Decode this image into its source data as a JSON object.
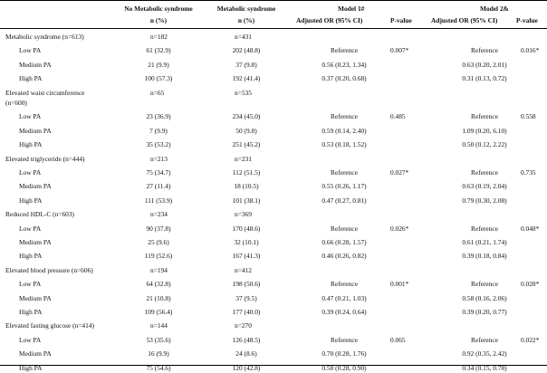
{
  "header": {
    "col1_line1": "No Metabolic syndrome",
    "col1_line2": "n (%)",
    "col2_line1": "Metabolic syndrome",
    "col2_line2": "n (%)",
    "model1": "Model 1#",
    "model1_or": "Adjusted OR (95% CI)",
    "model1_p": "P-value",
    "model2": "Model 2&",
    "model2_or": "Adjusted OR (95% CI)",
    "model2_p": "P-value"
  },
  "sections": [
    {
      "title": "Metabolic syndrome (n=613)",
      "title2": "",
      "n_no": "n=182",
      "n_yes": "n=431",
      "p1": "0.007*",
      "p2": "0.016*",
      "rows": [
        {
          "label": "Low PA",
          "no": "61 (32.9)",
          "yes": "202 (48.8)",
          "or1": "Reference",
          "or2": "Reference"
        },
        {
          "label": "Medium PA",
          "no": "21 (9.9)",
          "yes": "37 (9.8)",
          "or1": "0.56 (0.23, 1.34)",
          "or2": "0.63 (0.20, 2.01)"
        },
        {
          "label": "High PA",
          "no": "100 (57.3)",
          "yes": "192 (41.4)",
          "or1": "0.37 (0.20, 0.68)",
          "or2": "0.31 (0.13, 0.72)"
        }
      ]
    },
    {
      "title": "Elevated waist circumference",
      "title2": "(n=600)",
      "n_no": "n=65",
      "n_yes": "n=535",
      "p1": "0.485",
      "p2": "0.558",
      "rows": [
        {
          "label": "Low PA",
          "no": "23 (36.9)",
          "yes": "234 (45.0)",
          "or1": "Reference",
          "or2": "Reference"
        },
        {
          "label": "Medium PA",
          "no": "7 (9.9)",
          "yes": "50 (9.8)",
          "or1": "0.59 (0.14, 2.40)",
          "or2": "1.09 (0.20, 6.10)"
        },
        {
          "label": "High PA",
          "no": "35 (53.2)",
          "yes": "251 (45.2)",
          "or1": "0.53 (0.18, 1.52)",
          "or2": "0.50 (0.12, 2.22)"
        }
      ]
    },
    {
      "title": "Elevated triglyceride (n=444)",
      "title2": "",
      "n_no": "n=213",
      "n_yes": "n=231",
      "p1": "0.027*",
      "p2": "0.735",
      "rows": [
        {
          "label": "Low PA",
          "no": "75 (34.7)",
          "yes": "112 (51.5)",
          "or1": "Reference",
          "or2": "Reference"
        },
        {
          "label": "Medium PA",
          "no": "27 (11.4)",
          "yes": "18 (10.5)",
          "or1": "0.55 (0.26, 1.17)",
          "or2": "0.63 (0.19, 2.04)"
        },
        {
          "label": "High PA",
          "no": "111 (53.9)",
          "yes": "101 (38.1)",
          "or1": "0.47 (0.27, 0.81)",
          "or2": "0.79 (0.30, 2.08)"
        }
      ]
    },
    {
      "title": "Reduced HDL-C (n=603)",
      "title2": "",
      "n_no": "n=234",
      "n_yes": "n=369",
      "p1": "0.026*",
      "p2": "0.048*",
      "rows": [
        {
          "label": "Low PA",
          "no": "90 (37.8)",
          "yes": "170 (48.6)",
          "or1": "Reference",
          "or2": "Reference"
        },
        {
          "label": "Medium PA",
          "no": "25 (9.6)",
          "yes": "32 (10.1)",
          "or1": "0.66 (0.28, 1.57)",
          "or2": "0.61 (0.21, 1.74)"
        },
        {
          "label": "High PA",
          "no": "119 (52.6)",
          "yes": "167 (41.3)",
          "or1": "0.46 (0.26, 0.82)",
          "or2": "0.39 (0.18, 0.84)"
        }
      ]
    },
    {
      "title": "Elevated blood pressure (n=606)",
      "title2": "",
      "n_no": "n=194",
      "n_yes": "n=412",
      "p1": "0.001*",
      "p2": "0.028*",
      "rows": [
        {
          "label": "Low PA",
          "no": "64 (32.8)",
          "yes": "198 (50.6)",
          "or1": "Reference",
          "or2": "Reference"
        },
        {
          "label": "Medium PA",
          "no": "21 (10.8)",
          "yes": "37 (9.5)",
          "or1": "0.47 (0.21, 1.03)",
          "or2": "0.58 (0.16, 2.06)"
        },
        {
          "label": "High PA",
          "no": "109 (56.4)",
          "yes": "177 (40.0)",
          "or1": "0.39 (0.24, 0.64)",
          "or2": "0.39 (0.20, 0.77)"
        }
      ]
    },
    {
      "title": "Elevated fasting glucose (n=414)",
      "title2": "",
      "n_no": "n=144",
      "n_yes": "n=270",
      "p1": "0.065",
      "p2": "0.022*",
      "rows": [
        {
          "label": "Low PA",
          "no": "53 (35.6)",
          "yes": "126 (48.5)",
          "or1": "Reference",
          "or2": "Reference"
        },
        {
          "label": "Medium PA",
          "no": "16 (9.9)",
          "yes": "24 (8.6)",
          "or1": "0.70 (0.28, 1.76)",
          "or2": "0.92 (0.35, 2.42)"
        },
        {
          "label": "High PA",
          "no": "75 (54.6)",
          "yes": "120 (42.8)",
          "or1": "0.50 (0.28, 0.90)",
          "or2": "0.34 (0.15, 0.78)"
        }
      ]
    }
  ]
}
